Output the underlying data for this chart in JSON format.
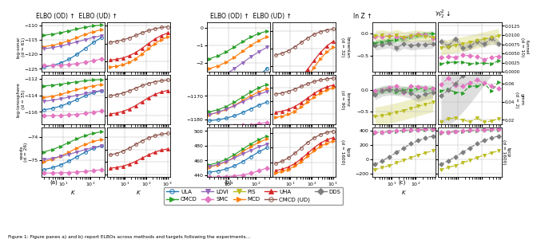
{
  "panel_a_title": "ELBO (OD) ↑  ELBO (UD) ↑",
  "panel_b_title": "ELBO (OD) ↑  ELBO (UD) ↑",
  "panel_c_lnz_title": "ln Z ↑",
  "panel_c_w2_title": "$\\mathcal{W}_2^2$ ↓",
  "row_labels_a": [
    "log-sonar\n(d = 61)",
    "log-ionosphere\n(d = 35)",
    "seeds\n(d = 26)"
  ],
  "row_labels_b": [
    "brownian\n(d = 32)",
    "lorenz\n(d = 90)",
    "lgcp\n(d = 1600)"
  ],
  "row_labels_c": [
    "funnel\n(d = 10)",
    "gmm\n(d = 2)",
    "lgcp\n(d = 1600)"
  ],
  "colors": {
    "ULA": "#1f77b4",
    "MCD": "#ff7f0e",
    "CMCD": "#2ca02c",
    "UHA": "#d62728",
    "LDVI": "#9467bd",
    "CMCD_UD": "#8c564b",
    "SMC": "#e377c2",
    "DDS": "#7f7f7f",
    "PIS": "#bcbd22"
  }
}
